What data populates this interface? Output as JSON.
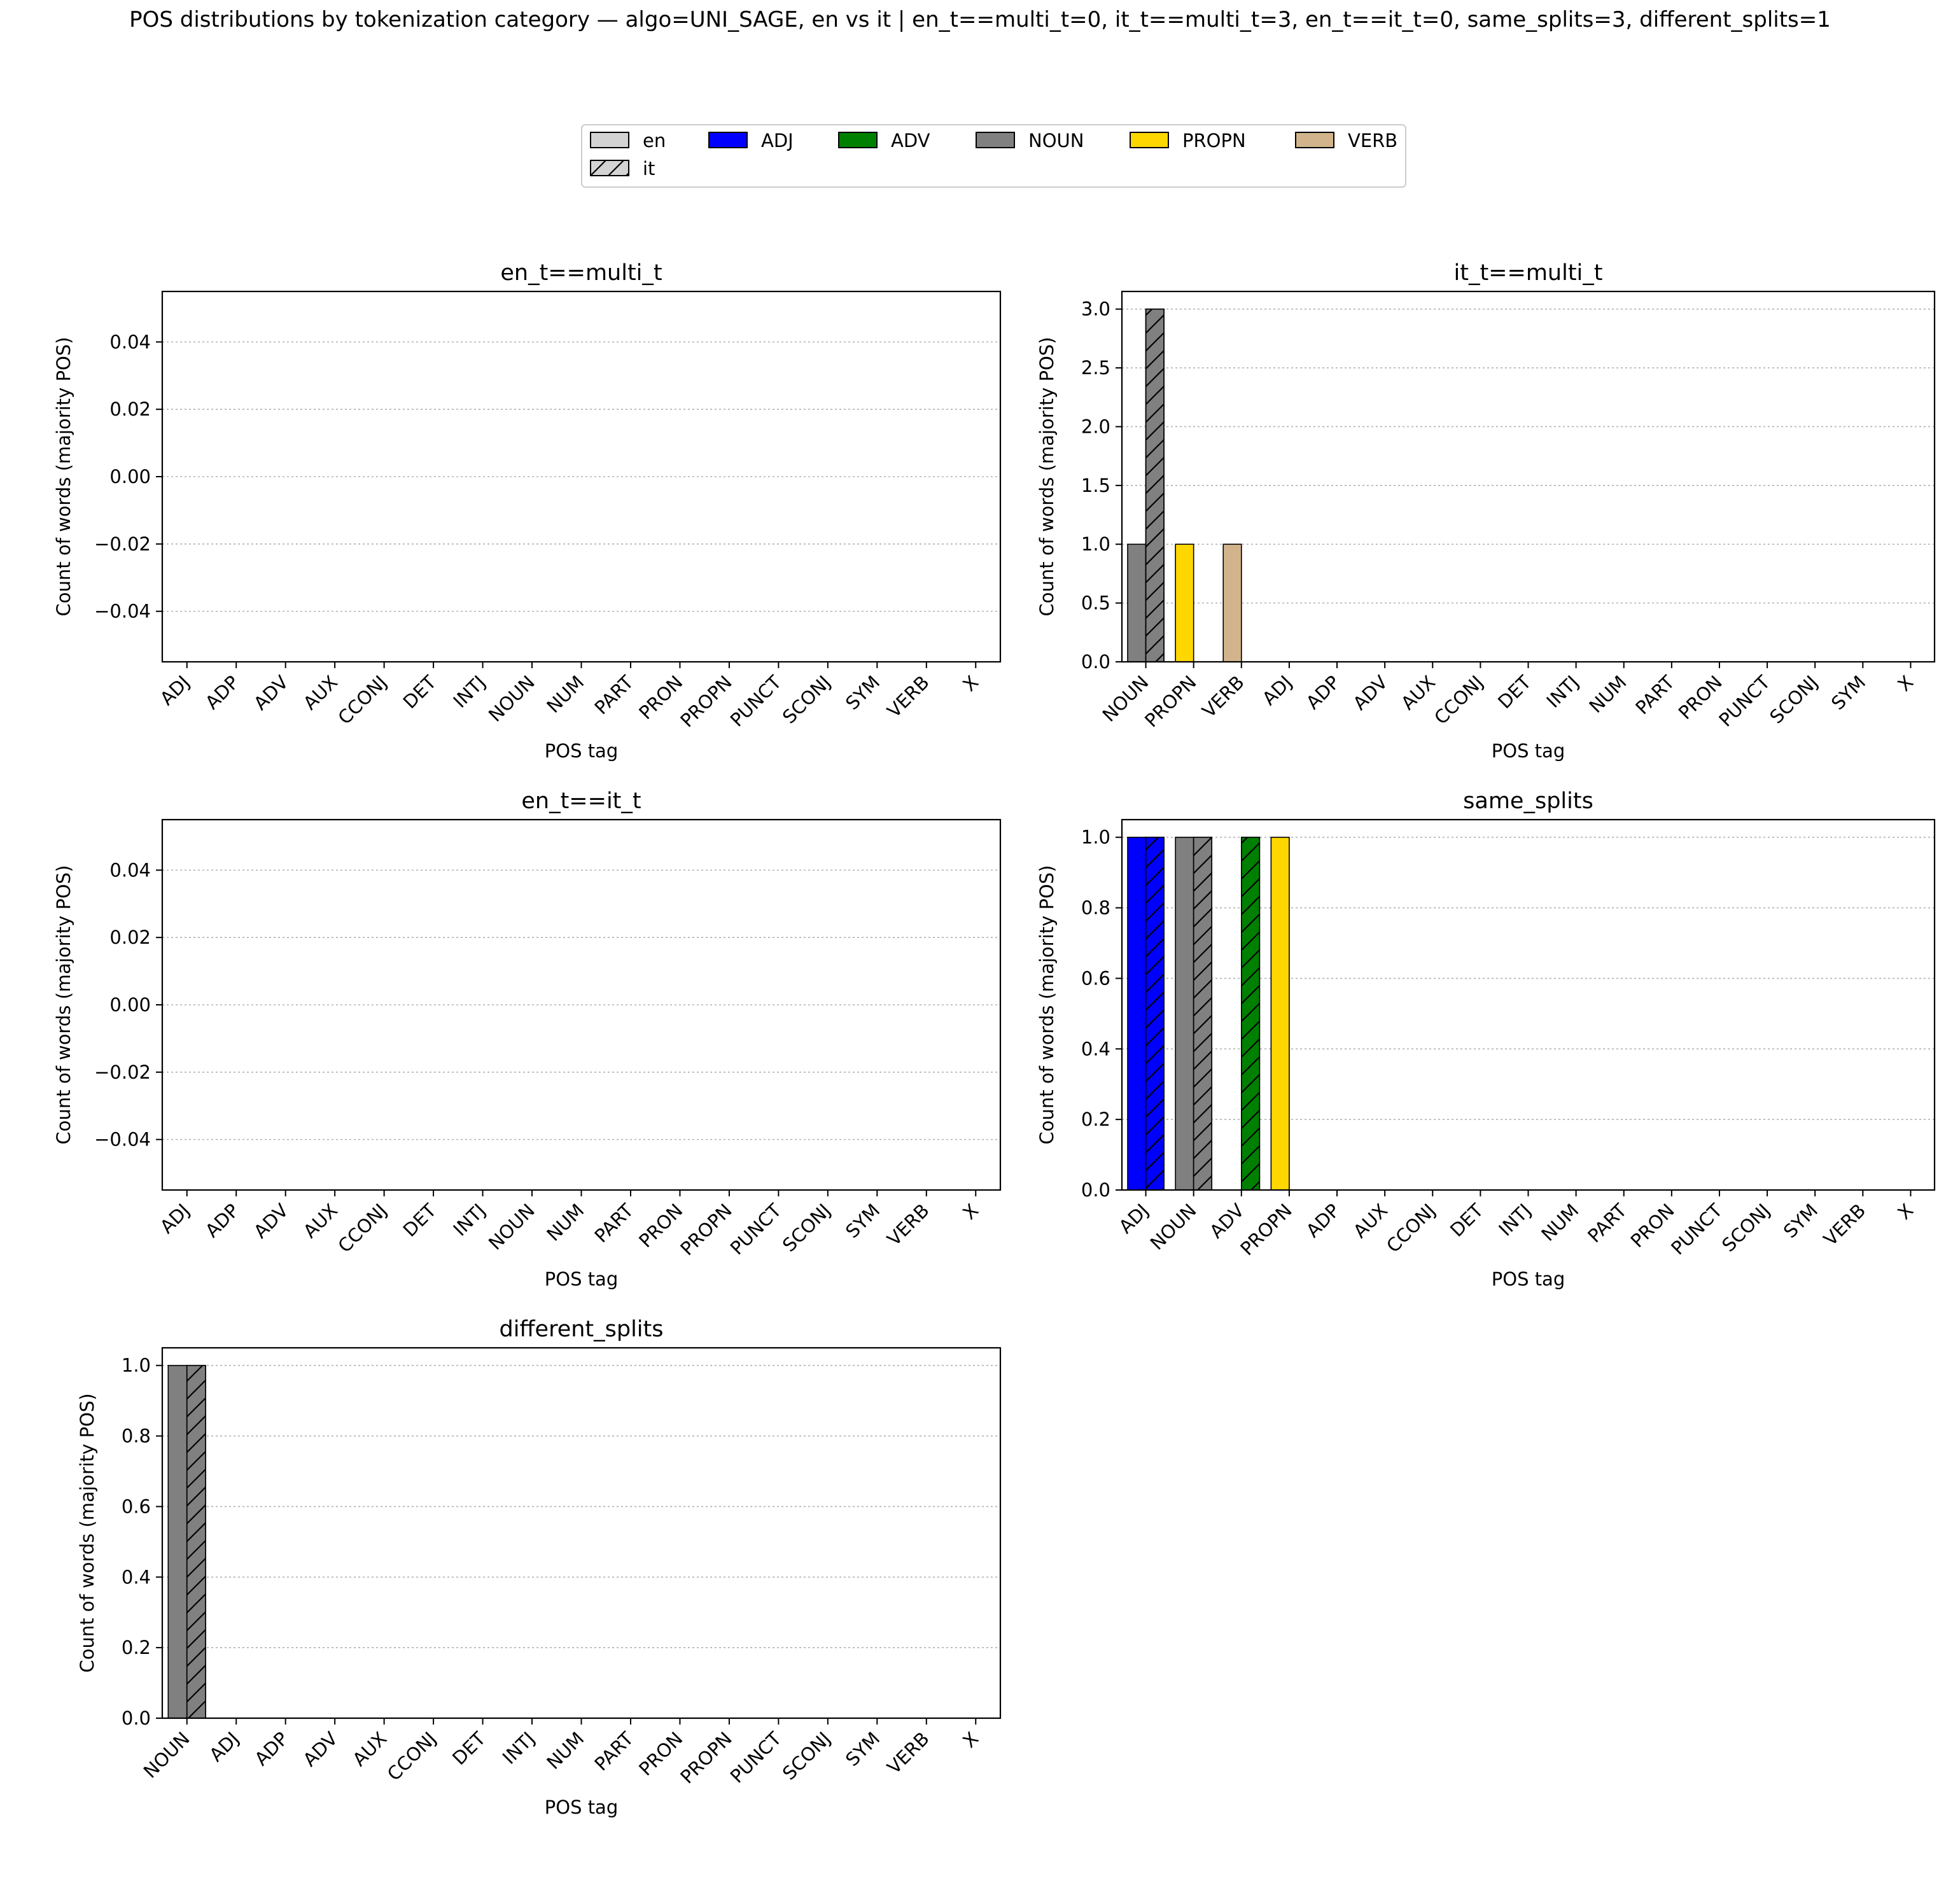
{
  "suptitle": "POS distributions by tokenization category — algo=UNI_SAGE, en vs it | en_t==multi_t=0, it_t==multi_t=3, en_t==it_t=0, same_splits=3, different_splits=1",
  "legend": {
    "languages": [
      {
        "key": "en",
        "label": "en",
        "hatched": false
      },
      {
        "key": "it",
        "label": "it",
        "hatched": true
      }
    ],
    "pos": [
      {
        "tag": "ADJ",
        "color": "#0000ff"
      },
      {
        "tag": "ADV",
        "color": "#008000"
      },
      {
        "tag": "NOUN",
        "color": "#808080"
      },
      {
        "tag": "PROPN",
        "color": "#ffd700"
      },
      {
        "tag": "VERB",
        "color": "#d2b48c"
      }
    ]
  },
  "colors": {
    "default_bar": "#d3d3d3",
    "grid": "#b0b0b0"
  },
  "chart_data": [
    {
      "type": "bar",
      "title": "en_t==multi_t",
      "xlabel": "POS tag",
      "ylabel": "Count of words (majority POS)",
      "categories": [
        "ADJ",
        "ADP",
        "ADV",
        "AUX",
        "CCONJ",
        "DET",
        "INTJ",
        "NOUN",
        "NUM",
        "PART",
        "PRON",
        "PROPN",
        "PUNCT",
        "SCONJ",
        "SYM",
        "VERB",
        "X"
      ],
      "series": [
        {
          "name": "en",
          "values": [
            0,
            0,
            0,
            0,
            0,
            0,
            0,
            0,
            0,
            0,
            0,
            0,
            0,
            0,
            0,
            0,
            0
          ]
        },
        {
          "name": "it",
          "values": [
            0,
            0,
            0,
            0,
            0,
            0,
            0,
            0,
            0,
            0,
            0,
            0,
            0,
            0,
            0,
            0,
            0
          ]
        }
      ],
      "ylim": [
        -0.055,
        0.055
      ],
      "yticks": [
        "−0.04",
        "−0.02",
        "0.00",
        "0.02",
        "0.04"
      ],
      "ytick_values": [
        -0.04,
        -0.02,
        0,
        0.02,
        0.04
      ],
      "grid": "y"
    },
    {
      "type": "bar",
      "title": "it_t==multi_t",
      "xlabel": "POS tag",
      "ylabel": "Count of words (majority POS)",
      "categories": [
        "NOUN",
        "PROPN",
        "VERB",
        "ADJ",
        "ADP",
        "ADV",
        "AUX",
        "CCONJ",
        "DET",
        "INTJ",
        "NUM",
        "PART",
        "PRON",
        "PUNCT",
        "SCONJ",
        "SYM",
        "X"
      ],
      "series": [
        {
          "name": "en",
          "values": [
            1,
            1,
            1,
            0,
            0,
            0,
            0,
            0,
            0,
            0,
            0,
            0,
            0,
            0,
            0,
            0,
            0
          ]
        },
        {
          "name": "it",
          "values": [
            3,
            0,
            0,
            0,
            0,
            0,
            0,
            0,
            0,
            0,
            0,
            0,
            0,
            0,
            0,
            0,
            0
          ]
        }
      ],
      "ylim": [
        0,
        3.15
      ],
      "yticks": [
        "0.0",
        "0.5",
        "1.0",
        "1.5",
        "2.0",
        "2.5",
        "3.0"
      ],
      "ytick_values": [
        0,
        0.5,
        1,
        1.5,
        2,
        2.5,
        3
      ],
      "grid": "y"
    },
    {
      "type": "bar",
      "title": "en_t==it_t",
      "xlabel": "POS tag",
      "ylabel": "Count of words (majority POS)",
      "categories": [
        "ADJ",
        "ADP",
        "ADV",
        "AUX",
        "CCONJ",
        "DET",
        "INTJ",
        "NOUN",
        "NUM",
        "PART",
        "PRON",
        "PROPN",
        "PUNCT",
        "SCONJ",
        "SYM",
        "VERB",
        "X"
      ],
      "series": [
        {
          "name": "en",
          "values": [
            0,
            0,
            0,
            0,
            0,
            0,
            0,
            0,
            0,
            0,
            0,
            0,
            0,
            0,
            0,
            0,
            0
          ]
        },
        {
          "name": "it",
          "values": [
            0,
            0,
            0,
            0,
            0,
            0,
            0,
            0,
            0,
            0,
            0,
            0,
            0,
            0,
            0,
            0,
            0
          ]
        }
      ],
      "ylim": [
        -0.055,
        0.055
      ],
      "yticks": [
        "−0.04",
        "−0.02",
        "0.00",
        "0.02",
        "0.04"
      ],
      "ytick_values": [
        -0.04,
        -0.02,
        0,
        0.02,
        0.04
      ],
      "grid": "y"
    },
    {
      "type": "bar",
      "title": "same_splits",
      "xlabel": "POS tag",
      "ylabel": "Count of words (majority POS)",
      "categories": [
        "ADJ",
        "NOUN",
        "ADV",
        "PROPN",
        "ADP",
        "AUX",
        "CCONJ",
        "DET",
        "INTJ",
        "NUM",
        "PART",
        "PRON",
        "PUNCT",
        "SCONJ",
        "SYM",
        "VERB",
        "X"
      ],
      "series": [
        {
          "name": "en",
          "values": [
            1,
            1,
            0,
            1,
            0,
            0,
            0,
            0,
            0,
            0,
            0,
            0,
            0,
            0,
            0,
            0,
            0
          ]
        },
        {
          "name": "it",
          "values": [
            1,
            1,
            1,
            0,
            0,
            0,
            0,
            0,
            0,
            0,
            0,
            0,
            0,
            0,
            0,
            0,
            0
          ]
        }
      ],
      "ylim": [
        0,
        1.05
      ],
      "yticks": [
        "0.0",
        "0.2",
        "0.4",
        "0.6",
        "0.8",
        "1.0"
      ],
      "ytick_values": [
        0,
        0.2,
        0.4,
        0.6,
        0.8,
        1.0
      ],
      "grid": "y"
    },
    {
      "type": "bar",
      "title": "different_splits",
      "xlabel": "POS tag",
      "ylabel": "Count of words (majority POS)",
      "categories": [
        "NOUN",
        "ADJ",
        "ADP",
        "ADV",
        "AUX",
        "CCONJ",
        "DET",
        "INTJ",
        "NUM",
        "PART",
        "PRON",
        "PROPN",
        "PUNCT",
        "SCONJ",
        "SYM",
        "VERB",
        "X"
      ],
      "series": [
        {
          "name": "en",
          "values": [
            1,
            0,
            0,
            0,
            0,
            0,
            0,
            0,
            0,
            0,
            0,
            0,
            0,
            0,
            0,
            0,
            0
          ]
        },
        {
          "name": "it",
          "values": [
            1,
            0,
            0,
            0,
            0,
            0,
            0,
            0,
            0,
            0,
            0,
            0,
            0,
            0,
            0,
            0,
            0
          ]
        }
      ],
      "ylim": [
        0,
        1.05
      ],
      "yticks": [
        "0.0",
        "0.2",
        "0.4",
        "0.6",
        "0.8",
        "1.0"
      ],
      "ytick_values": [
        0,
        0.2,
        0.4,
        0.6,
        0.8,
        1.0
      ],
      "grid": "y"
    }
  ]
}
